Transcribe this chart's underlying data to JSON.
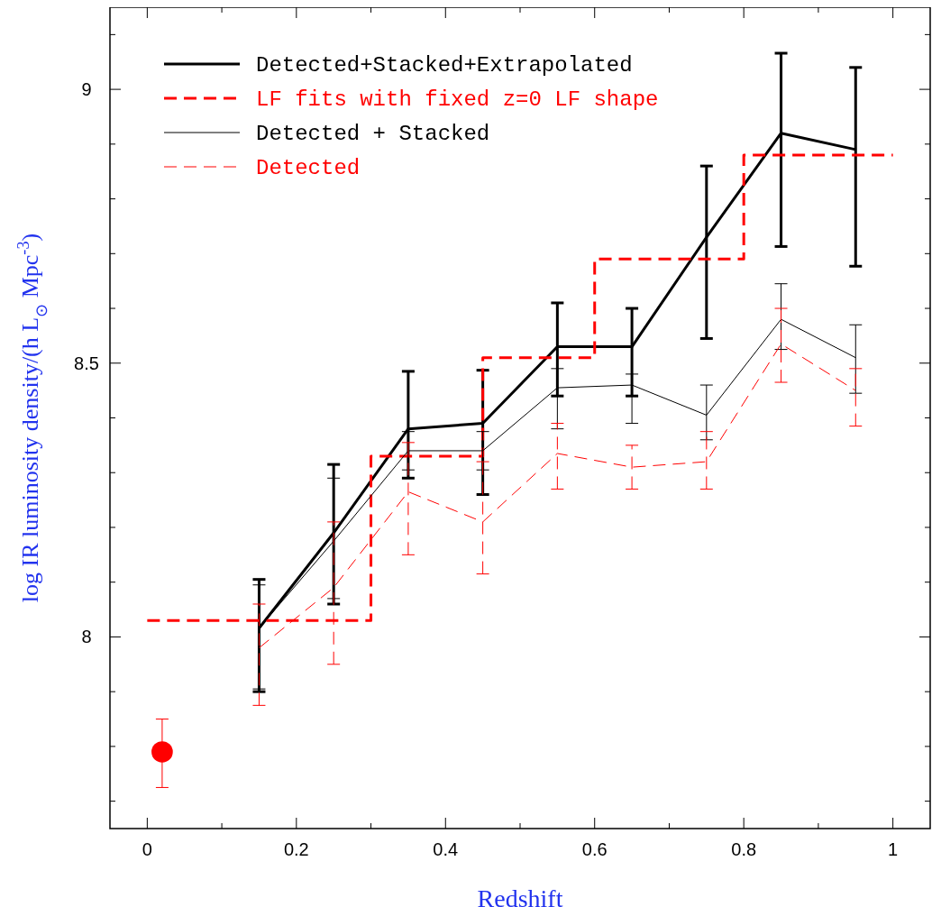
{
  "chart_data": {
    "type": "line",
    "xlabel": "Redshift",
    "ylabel": "log IR luminosity density/(h L$_{⊙}$ Mpc$^{-3}$)",
    "xlim": [
      -0.05,
      1.05
    ],
    "ylim": [
      7.65,
      9.15
    ],
    "xticks": [
      0,
      {
        "value": 0.1,
        "label": null
      },
      0.2,
      {
        "value": 0.3,
        "label": null
      },
      0.4,
      {
        "value": 0.5,
        "label": null
      },
      0.6,
      {
        "value": 0.7,
        "label": null
      },
      0.8,
      {
        "value": 0.9,
        "label": null
      },
      1
    ],
    "yticks": [
      {
        "value": 7.7,
        "label": null
      },
      {
        "value": 7.8,
        "label": null
      },
      {
        "value": 7.9,
        "label": null
      },
      8,
      {
        "value": 8.1,
        "label": null
      },
      {
        "value": 8.2,
        "label": null
      },
      {
        "value": 8.3,
        "label": null
      },
      {
        "value": 8.4,
        "label": null
      },
      8.5,
      {
        "value": 8.6,
        "label": null
      },
      {
        "value": 8.7,
        "label": null
      },
      {
        "value": 8.8,
        "label": null
      },
      {
        "value": 8.9,
        "label": null
      },
      9,
      {
        "value": 9.1,
        "label": null
      }
    ],
    "legend": "top left",
    "grid": false,
    "series": [
      {
        "name": "Detected+Stacked+Extrapolated",
        "color": "#000000",
        "line_style": "solid",
        "marker": "none",
        "x": [
          0.15,
          0.25,
          0.35,
          0.45,
          0.55,
          0.65,
          0.75,
          0.85,
          0.95
        ],
        "values": [
          8.016,
          8.19,
          8.38,
          8.39,
          8.53,
          8.53,
          8.73,
          8.92,
          8.89
        ],
        "errors": [
          [
            7.9,
            8.105
          ],
          [
            8.06,
            8.315
          ],
          [
            8.29,
            8.485
          ],
          [
            8.26,
            8.487
          ],
          [
            8.44,
            8.61
          ],
          [
            8.44,
            8.6
          ],
          [
            8.545,
            8.86
          ],
          [
            8.713,
            9.066
          ],
          [
            8.677,
            9.04
          ]
        ]
      },
      {
        "name": "LF fits with fixed z=0 LF shape",
        "type": "step",
        "color": "#ff0000",
        "line_style": "dashed",
        "marker": "none",
        "x": [
          0,
          0.3,
          0.45,
          0.6,
          0.8,
          1.0
        ],
        "values": [
          8.03,
          8.33,
          8.51,
          8.69,
          8.88,
          8.88
        ]
      },
      {
        "name": "Detected + Stacked",
        "color": "#000000",
        "line_style": "solid",
        "marker": "none",
        "x": [
          0.15,
          0.25,
          0.35,
          0.45,
          0.55,
          0.65,
          0.75,
          0.85,
          0.95
        ],
        "values": [
          8.016,
          8.175,
          8.34,
          8.34,
          8.455,
          8.46,
          8.405,
          8.58,
          8.51
        ],
        "errors": [
          [
            7.905,
            8.095
          ],
          [
            8.07,
            8.29
          ],
          [
            8.305,
            8.375
          ],
          [
            8.305,
            8.375
          ],
          [
            8.38,
            8.49
          ],
          [
            8.39,
            8.48
          ],
          [
            8.36,
            8.46
          ],
          [
            8.525,
            8.645
          ],
          [
            8.445,
            8.57
          ]
        ]
      },
      {
        "name": "Detected",
        "color": "#ff0000",
        "line_style": "dashed",
        "marker": "none",
        "x": [
          0.15,
          0.25,
          0.35,
          0.45,
          0.55,
          0.65,
          0.75,
          0.85,
          0.95
        ],
        "values": [
          7.98,
          8.09,
          8.265,
          8.21,
          8.335,
          8.31,
          8.32,
          8.535,
          8.45
        ],
        "errors": [
          [
            7.875,
            8.06
          ],
          [
            7.95,
            8.21
          ],
          [
            8.15,
            8.355
          ],
          [
            8.115,
            8.32
          ],
          [
            8.27,
            8.39
          ],
          [
            8.27,
            8.35
          ],
          [
            8.27,
            8.375
          ],
          [
            8.465,
            8.6
          ],
          [
            8.385,
            8.49
          ]
        ]
      },
      {
        "type": "scatter",
        "color": "#ff0000",
        "marker": "circle",
        "x": [
          0.02
        ],
        "values": [
          7.79
        ],
        "errors": [
          [
            7.725,
            7.85
          ]
        ]
      }
    ]
  }
}
